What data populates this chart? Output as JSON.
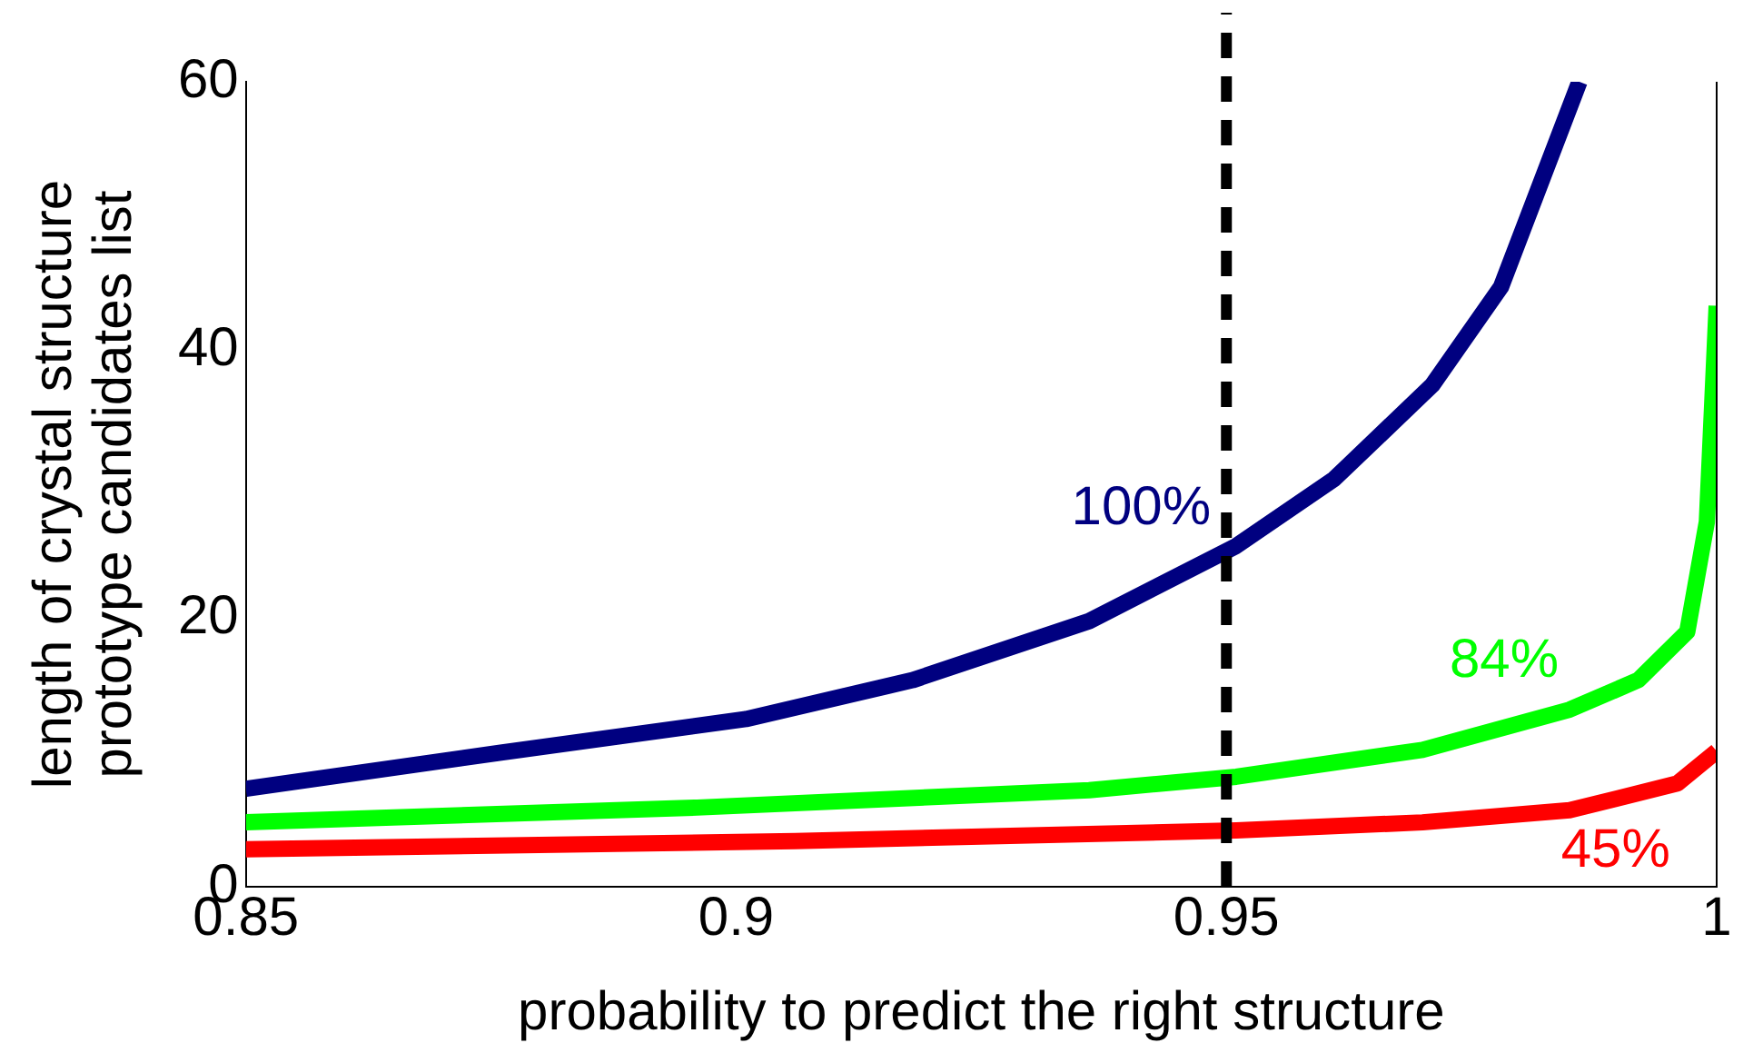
{
  "chart_data": {
    "type": "line",
    "xlabel": "probability to predict the right structure",
    "ylabel": "length of crystal structure\nprototype candidates list",
    "xlim": [
      0.85,
      1
    ],
    "xticks": [
      0.85,
      0.9,
      0.95,
      1
    ],
    "ylim": [
      0,
      60
    ],
    "yticks": [
      0,
      20,
      40,
      60
    ],
    "grid": false,
    "legend": false,
    "marker": "none",
    "line_style": "solid",
    "series": [
      {
        "name": "100%",
        "color": "#000080",
        "x": [
          0.85,
          0.876,
          0.901,
          0.918,
          0.936,
          0.951,
          0.961,
          0.971,
          0.978,
          0.986
        ],
        "values": [
          7.3,
          10.0,
          12.5,
          15.4,
          19.8,
          25.4,
          30.4,
          37.4,
          44.7,
          60
        ]
      },
      {
        "name": "84%",
        "color": "#00ff00",
        "x": [
          0.85,
          0.896,
          0.936,
          0.951,
          0.97,
          0.985,
          0.992,
          0.997,
          0.999,
          1.0
        ],
        "values": [
          4.8,
          5.9,
          7.2,
          8.2,
          10.2,
          13.2,
          15.4,
          19.0,
          27.2,
          43.3
        ]
      },
      {
        "name": "45%",
        "color": "#ff0000",
        "x": [
          0.85,
          0.906,
          0.951,
          0.97,
          0.985,
          0.996,
          1.0
        ],
        "values": [
          2.8,
          3.4,
          4.2,
          4.8,
          5.7,
          7.7,
          10.1
        ]
      }
    ],
    "ref_lines": [
      {
        "axis": "x",
        "value": 0.95,
        "color": "#000000",
        "line_style": "dashed"
      }
    ]
  }
}
